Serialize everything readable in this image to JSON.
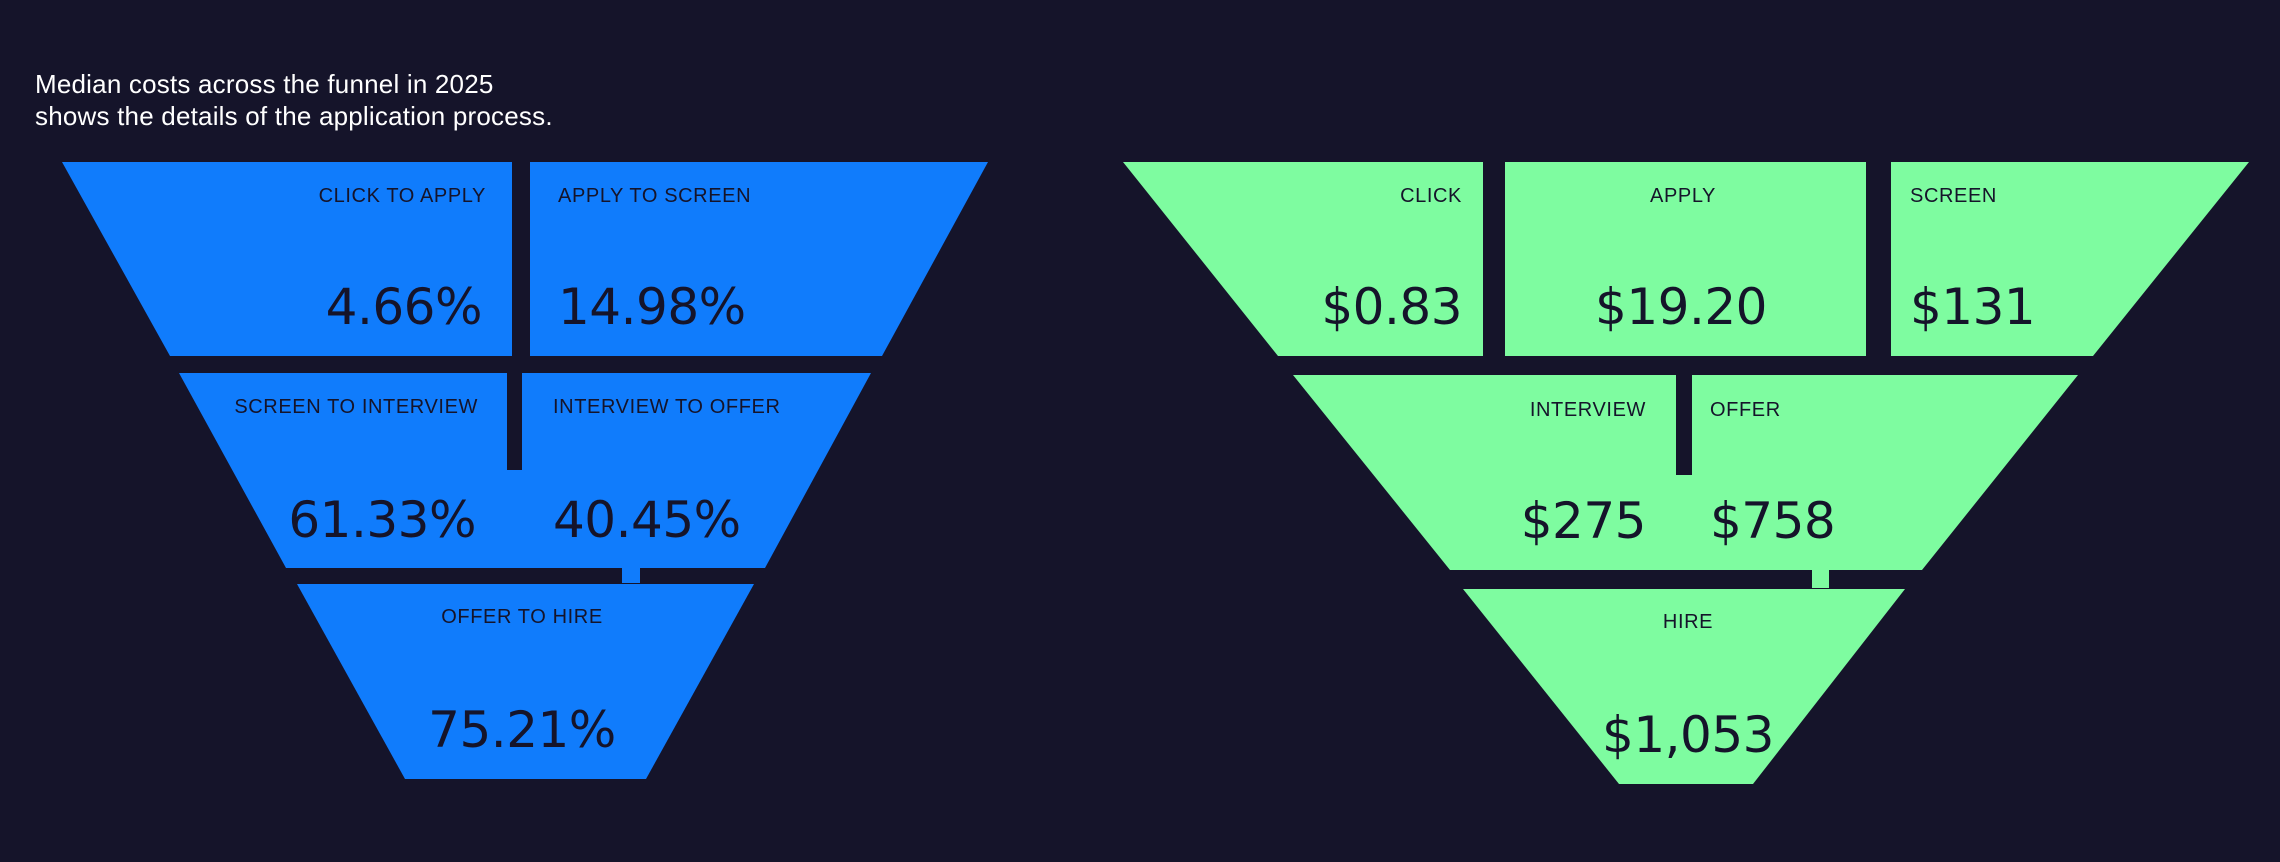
{
  "headline": {
    "line1": "Median costs across the funnel in 2025",
    "line2": "shows the details of the application process."
  },
  "colors": {
    "background": "#15142a",
    "conversion_fill": "#107cfc",
    "cost_fill": "#7efca0",
    "text_dark": "#15142a",
    "text_light": "#ffffff"
  },
  "conversion_funnel": {
    "segments": [
      {
        "label": "CLICK TO APPLY",
        "value": "4.66%"
      },
      {
        "label": "APPLY TO SCREEN",
        "value": "14.98%"
      },
      {
        "label": "SCREEN TO INTERVIEW",
        "value": "61.33%"
      },
      {
        "label": "INTERVIEW TO OFFER",
        "value": "40.45%"
      },
      {
        "label": "OFFER TO HIRE",
        "value": "75.21%"
      }
    ]
  },
  "cost_funnel": {
    "segments": [
      {
        "label": "CLICK",
        "value": "$0.83"
      },
      {
        "label": "APPLY",
        "value": "$19.20"
      },
      {
        "label": "SCREEN",
        "value": "$131"
      },
      {
        "label": "INTERVIEW",
        "value": "$275"
      },
      {
        "label": "OFFER",
        "value": "$758"
      },
      {
        "label": "HIRE",
        "value": "$1,053"
      }
    ]
  }
}
